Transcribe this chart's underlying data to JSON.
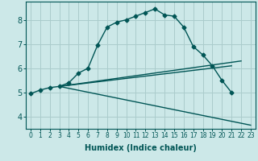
{
  "xlabel": "Humidex (Indice chaleur)",
  "background_color": "#cce8e8",
  "grid_color": "#aacccc",
  "line_color": "#005555",
  "xlim": [
    -0.5,
    23.5
  ],
  "ylim": [
    3.5,
    8.75
  ],
  "yticks": [
    4,
    5,
    6,
    7,
    8
  ],
  "xticks": [
    0,
    1,
    2,
    3,
    4,
    5,
    6,
    7,
    8,
    9,
    10,
    11,
    12,
    13,
    14,
    15,
    16,
    17,
    18,
    19,
    20,
    21,
    22,
    23
  ],
  "main_x": [
    0,
    1,
    2,
    3,
    4,
    5,
    6,
    7,
    8,
    9,
    10,
    11,
    12,
    13,
    14,
    15,
    16,
    17,
    18,
    19,
    20,
    21
  ],
  "main_y": [
    4.95,
    5.1,
    5.2,
    5.25,
    5.4,
    5.8,
    6.0,
    6.95,
    7.7,
    7.9,
    8.0,
    8.15,
    8.3,
    8.45,
    8.2,
    8.15,
    7.7,
    6.9,
    6.55,
    6.1,
    5.5,
    5.0
  ],
  "trend_lines": [
    {
      "x": [
        3,
        21
      ],
      "y": [
        5.25,
        6.1
      ],
      "style": "-"
    },
    {
      "x": [
        3,
        22
      ],
      "y": [
        5.25,
        6.3
      ],
      "style": "-"
    },
    {
      "x": [
        3,
        23
      ],
      "y": [
        5.25,
        3.65
      ],
      "style": "-"
    }
  ],
  "xlabel_fontsize": 7,
  "tick_fontsize_x": 5.5,
  "tick_fontsize_y": 7
}
